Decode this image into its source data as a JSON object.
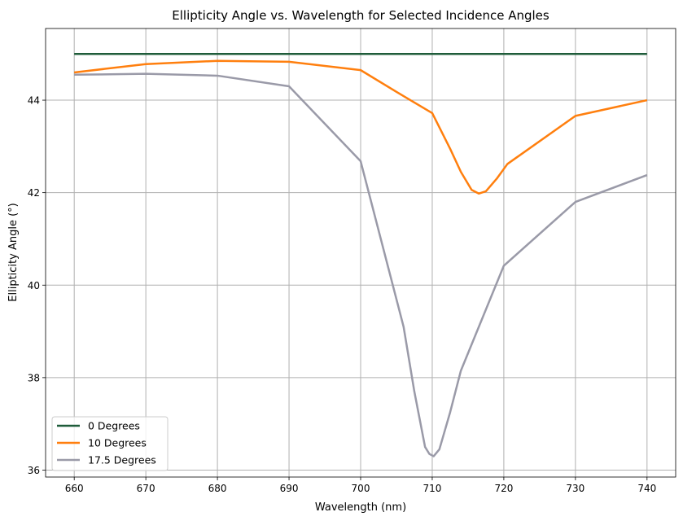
{
  "chart_data": {
    "type": "line",
    "title": "Ellipticity Angle vs. Wavelength for Selected Incidence Angles",
    "xlabel": "Wavelength (nm)",
    "ylabel": "Ellipticity Angle (°)",
    "xlim": [
      656,
      744
    ],
    "ylim": [
      35.85,
      45.55
    ],
    "xticks": [
      660,
      670,
      680,
      690,
      700,
      710,
      720,
      730,
      740
    ],
    "yticks": [
      36,
      38,
      40,
      42,
      44
    ],
    "grid": true,
    "legend_position": "lower-left",
    "series": [
      {
        "name": "0 Degrees",
        "color": "#1f5c3a",
        "x": [
          660,
          670,
          680,
          690,
          700,
          710,
          720,
          730,
          740
        ],
        "y": [
          45.0,
          45.0,
          45.0,
          45.0,
          45.0,
          45.0,
          45.0,
          45.0,
          45.0
        ]
      },
      {
        "name": "10 Degrees",
        "color": "#ff7f0e",
        "x": [
          660,
          670,
          680,
          690,
          700,
          705,
          710,
          712.5,
          714,
          715.5,
          716.5,
          717.5,
          719,
          720.5,
          730,
          740
        ],
        "y": [
          44.6,
          44.78,
          44.85,
          44.83,
          44.65,
          44.18,
          43.72,
          42.95,
          42.45,
          42.06,
          41.98,
          42.03,
          42.3,
          42.62,
          43.66,
          44.0
        ]
      },
      {
        "name": "17.5 Degrees",
        "color": "#9a9aa8",
        "x": [
          660,
          670,
          680,
          690,
          700,
          706,
          707.5,
          709,
          709.6,
          710.2,
          711,
          712.5,
          714,
          720,
          730,
          740
        ],
        "y": [
          44.55,
          44.57,
          44.53,
          44.3,
          42.68,
          39.1,
          37.7,
          36.5,
          36.35,
          36.3,
          36.45,
          37.25,
          38.15,
          40.42,
          41.8,
          42.38
        ]
      }
    ]
  }
}
